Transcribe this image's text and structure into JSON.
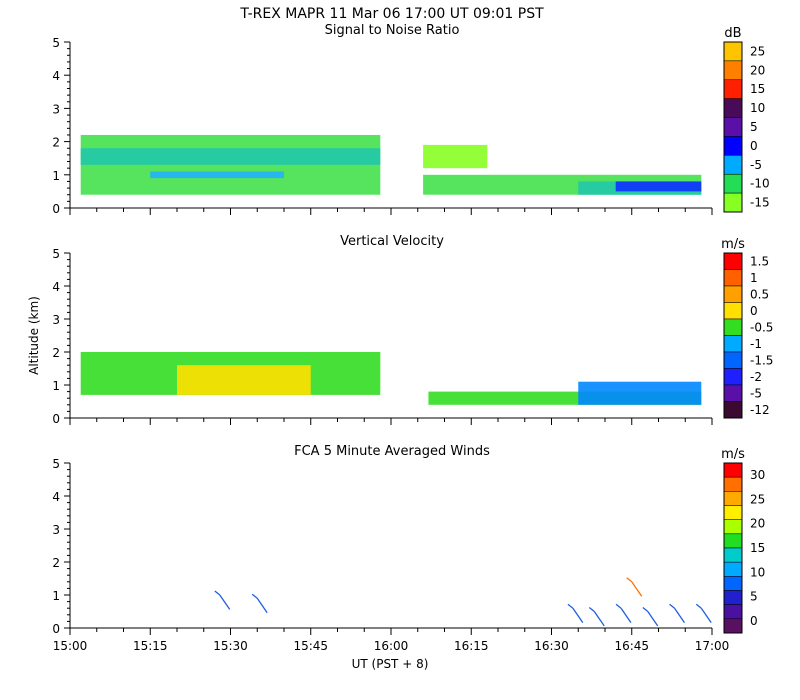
{
  "header": {
    "title": "T-REX   MAPR 11 Mar 06   17:00 UT   09:01   PST"
  },
  "xaxis": {
    "label": "UT  (PST + 8)",
    "range": [
      "15:00",
      "17:00"
    ],
    "ticks": [
      "15:00",
      "15:15",
      "15:30",
      "15:45",
      "16:00",
      "16:15",
      "16:30",
      "16:45",
      "17:00"
    ]
  },
  "chart_data": [
    {
      "type": "heatmap",
      "title": "Signal to Noise Ratio",
      "xlabel": "",
      "ylabel": "",
      "ylim": [
        0,
        5
      ],
      "yticks": [
        "0",
        "1",
        "2",
        "3",
        "4",
        "5"
      ],
      "colorbar": {
        "unit": "dB",
        "labels": [
          "25",
          "20",
          "15",
          "10",
          "5",
          "0",
          "-5",
          "-10",
          "-15"
        ],
        "colors": [
          "#ffc400",
          "#ff7f00",
          "#ff2000",
          "#4a0a5a",
          "#5a10a8",
          "#0000ff",
          "#00aaff",
          "#22dd55",
          "#88ff22"
        ]
      },
      "regions": [
        {
          "t0": "15:02",
          "t1": "15:58",
          "z0": 0.4,
          "z1": 2.2,
          "level": "green"
        },
        {
          "t0": "15:02",
          "t1": "15:58",
          "z0": 1.3,
          "z1": 1.8,
          "level": "teal"
        },
        {
          "t0": "15:15",
          "t1": "15:40",
          "z0": 0.9,
          "z1": 1.1,
          "level": "cyan"
        },
        {
          "t0": "16:06",
          "t1": "16:58",
          "z0": 0.4,
          "z1": 1.0,
          "level": "green"
        },
        {
          "t0": "16:06",
          "t1": "16:18",
          "z0": 1.2,
          "z1": 1.9,
          "level": "lime"
        },
        {
          "t0": "16:35",
          "t1": "16:58",
          "z0": 0.4,
          "z1": 0.8,
          "level": "teal"
        },
        {
          "t0": "16:42",
          "t1": "16:58",
          "z0": 0.5,
          "z1": 0.8,
          "level": "blue"
        }
      ]
    },
    {
      "type": "heatmap",
      "title": "Vertical Velocity",
      "xlabel": "",
      "ylabel": "Altitude  (km)",
      "ylim": [
        0,
        5
      ],
      "yticks": [
        "0",
        "1",
        "2",
        "3",
        "4",
        "5"
      ],
      "colorbar": {
        "unit": "m/s",
        "labels": [
          "1.5",
          "1",
          "0.5",
          "0",
          "-0.5",
          "-1",
          "-1.5",
          "-2",
          "-5",
          "-12"
        ],
        "colors": [
          "#ff0000",
          "#ff6000",
          "#ffa000",
          "#ffe000",
          "#33dd22",
          "#00aaff",
          "#0066ff",
          "#2020ff",
          "#5a10a8",
          "#3a0a30"
        ]
      },
      "regions": [
        {
          "t0": "15:02",
          "t1": "15:58",
          "z0": 0.7,
          "z1": 2.0,
          "level": "green"
        },
        {
          "t0": "15:20",
          "t1": "15:45",
          "z0": 0.7,
          "z1": 1.6,
          "level": "yellow"
        },
        {
          "t0": "16:07",
          "t1": "16:58",
          "z0": 0.4,
          "z1": 0.8,
          "level": "green"
        },
        {
          "t0": "16:35",
          "t1": "16:58",
          "z0": 0.4,
          "z1": 1.1,
          "level": "blue"
        }
      ]
    },
    {
      "type": "scatter",
      "title": "FCA 5 Minute Averaged Winds",
      "xlabel": "UT  (PST + 8)",
      "ylabel": "",
      "ylim": [
        0,
        5
      ],
      "yticks": [
        "0",
        "1",
        "2",
        "3",
        "4",
        "5"
      ],
      "colorbar": {
        "unit": "m/s",
        "labels": [
          "30",
          "25",
          "20",
          "15",
          "10",
          "5",
          "0"
        ],
        "colors": [
          "#ff0000",
          "#ff7000",
          "#ffaa00",
          "#ffee00",
          "#aaff00",
          "#22dd22",
          "#00cccc",
          "#00aaff",
          "#0066ff",
          "#2020cc",
          "#4a10a0",
          "#5a1060"
        ]
      },
      "barbs": [
        {
          "t": "15:28",
          "z": 1.0,
          "color": "#1f5fe0"
        },
        {
          "t": "15:35",
          "z": 0.9,
          "color": "#1f5fe0"
        },
        {
          "t": "16:34",
          "z": 0.6,
          "color": "#1f5fe0"
        },
        {
          "t": "16:38",
          "z": 0.5,
          "color": "#1f5fe0"
        },
        {
          "t": "16:43",
          "z": 0.6,
          "color": "#1f5fe0"
        },
        {
          "t": "16:48",
          "z": 0.5,
          "color": "#1f5fe0"
        },
        {
          "t": "16:53",
          "z": 0.6,
          "color": "#1f5fe0"
        },
        {
          "t": "16:58",
          "z": 0.6,
          "color": "#1f5fe0"
        },
        {
          "t": "16:45",
          "z": 1.4,
          "color": "#ff7000"
        }
      ]
    }
  ]
}
